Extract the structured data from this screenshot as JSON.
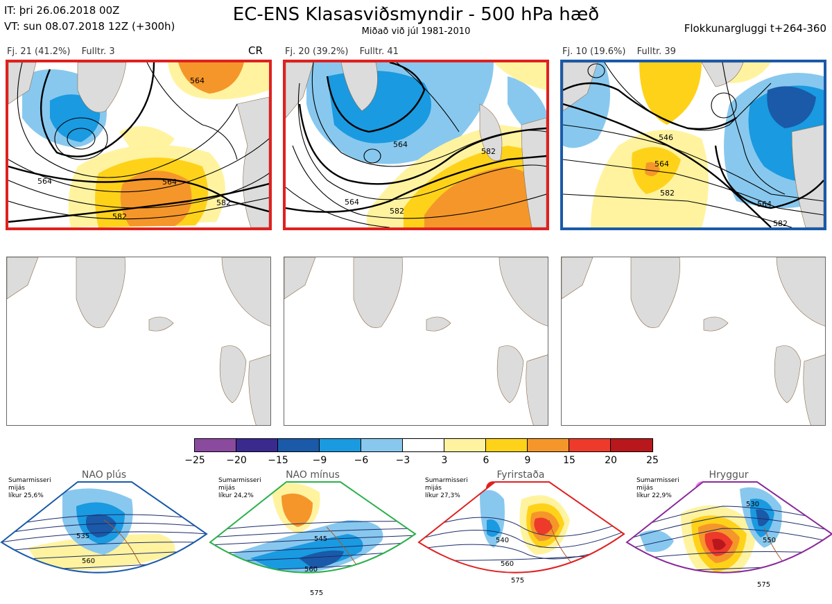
{
  "header": {
    "it_line": "IT: þri 26.06.2018 00Z",
    "vt_line": "VT: sun 08.07.2018 12Z  (+300h)",
    "title": "EC-ENS Klasasviðsmyndir - 500 hPa hæð",
    "subtitle": "Miðað við júl 1981-2010",
    "window": "Flokkunargluggi t+264-360"
  },
  "clusters": [
    {
      "count": "Fj. 21 (41.2%)",
      "rep": "Fulltr. 3",
      "tag": "CR",
      "border": "#e02020",
      "contours": [
        {
          "label": "564"
        },
        {
          "label": "564"
        },
        {
          "label": "582"
        },
        {
          "label": "582"
        },
        {
          "label": "564"
        }
      ]
    },
    {
      "count": "Fj. 20 (39.2%)",
      "rep": "Fulltr. 41",
      "tag": "",
      "border": "#e02020",
      "contours": [
        {
          "label": "564"
        },
        {
          "label": "582"
        },
        {
          "label": "564"
        },
        {
          "label": "582"
        }
      ]
    },
    {
      "count": "Fj. 10 (19.6%)",
      "rep": "Fulltr. 39",
      "tag": "",
      "border": "#1a5aa8",
      "contours": [
        {
          "label": "546"
        },
        {
          "label": "564"
        },
        {
          "label": "582"
        },
        {
          "label": "564"
        },
        {
          "label": "582"
        }
      ]
    }
  ],
  "colorbar": {
    "colors": [
      "#8a4a9e",
      "#3a2a8e",
      "#1a5aa8",
      "#1a9ae0",
      "#88c8ee",
      "#ffffff",
      "#fff3a0",
      "#ffd21a",
      "#f5962a",
      "#ee3a2a",
      "#b8181c"
    ],
    "ticks": [
      "−25",
      "−20",
      "−15",
      "−9",
      "−6",
      "−3",
      "3",
      "6",
      "9",
      "15",
      "20",
      "25"
    ]
  },
  "regimes": [
    {
      "name": "NAO plús",
      "season": "Sumarmisseri",
      "state": "mijás",
      "likelihood": "líkur 25,6%",
      "color": "#1a5aa8",
      "border": "#1a5aa8",
      "labels": [
        "535",
        "560"
      ]
    },
    {
      "name": "NAO mínus",
      "season": "Sumarmisseri",
      "state": "mijás",
      "likelihood": "líkur 24,2%",
      "color": "#2ab04a",
      "border": "#2ab04a",
      "labels": [
        "545",
        "560",
        "575"
      ]
    },
    {
      "name": "Fyrirstaða",
      "season": "Sumarmisseri",
      "state": "mijás",
      "likelihood": "líkur 27,3%",
      "color": "#e02020",
      "border": "#e02020",
      "labels": [
        "540",
        "560",
        "575"
      ]
    },
    {
      "name": "Hryggur",
      "season": "Sumarmisseri",
      "state": "mijás",
      "likelihood": "líkur 22,9%",
      "color": "#ee7aee",
      "border": "#8a2a9a",
      "labels": [
        "530",
        "550",
        "575"
      ]
    }
  ]
}
